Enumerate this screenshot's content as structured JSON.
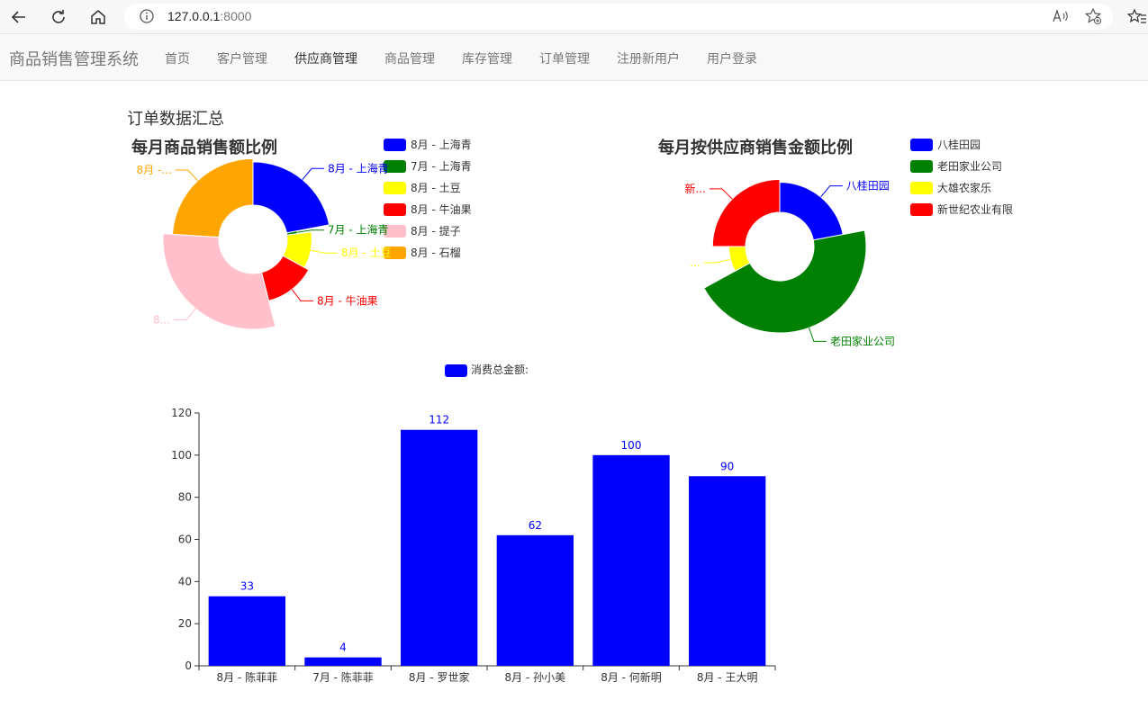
{
  "browser": {
    "url_host": "127.0.0.1",
    "url_port": ":8000"
  },
  "navbar": {
    "brand": "商品销售管理系统",
    "items": [
      {
        "label": "首页",
        "active": false
      },
      {
        "label": "客户管理",
        "active": false
      },
      {
        "label": "供应商管理",
        "active": true
      },
      {
        "label": "商品管理",
        "active": false
      },
      {
        "label": "库存管理",
        "active": false
      },
      {
        "label": "订单管理",
        "active": false
      },
      {
        "label": "注册新用户",
        "active": false
      },
      {
        "label": "用户登录",
        "active": false
      }
    ]
  },
  "page": {
    "section_title": "订单数据汇总"
  },
  "chart_data": [
    {
      "type": "pie",
      "variant": "rose",
      "title": "每月商品销售额比例",
      "legend_position": "top-right",
      "slices": [
        {
          "label": "8月 - 上海青",
          "outer_label": "8月 - 上海青",
          "value": 22,
          "color": "#0000ff"
        },
        {
          "label": "7月 - 上海青",
          "outer_label": "7月 - 上海青",
          "value": 1,
          "color": "#008000"
        },
        {
          "label": "8月 - 土豆",
          "outer_label": "8月 - 土豆",
          "value": 10,
          "color": "#ffff00"
        },
        {
          "label": "8月 - 牛油果",
          "outer_label": "8月 - 牛油果",
          "value": 13,
          "color": "#ff0000"
        },
        {
          "label": "8月 - 提子",
          "outer_label": "8...",
          "value": 30,
          "color": "#ffc0cb"
        },
        {
          "label": "8月 - 石榴",
          "outer_label": "8月 -...",
          "value": 24,
          "color": "#ffa500"
        }
      ]
    },
    {
      "type": "pie",
      "variant": "rose",
      "title": "每月按供应商销售金额比例",
      "legend_position": "top-right",
      "slices": [
        {
          "label": "八桂田园",
          "outer_label": "八桂田园",
          "value": 22,
          "color": "#0000ff"
        },
        {
          "label": "老田家业公司",
          "outer_label": "老田家业公司",
          "value": 45,
          "color": "#008000"
        },
        {
          "label": "大雄农家乐",
          "outer_label": "...",
          "value": 8,
          "color": "#ffff00"
        },
        {
          "label": "新世纪农业有限",
          "outer_label": "新...",
          "value": 25,
          "color": "#ff0000"
        }
      ]
    },
    {
      "type": "bar",
      "legend": "消费总金额:",
      "legend_position": "top-center",
      "categories": [
        "8月 - 陈菲菲",
        "7月 - 陈菲菲",
        "8月 - 罗世家",
        "8月 - 孙小美",
        "8月 - 何新明",
        "8月 - 王大明"
      ],
      "values": [
        33,
        4,
        112,
        62,
        100,
        90
      ],
      "ylim": [
        0,
        120
      ],
      "yticks": [
        0,
        20,
        40,
        60,
        80,
        100,
        120
      ],
      "color": "#0000ff",
      "grid": false
    }
  ]
}
